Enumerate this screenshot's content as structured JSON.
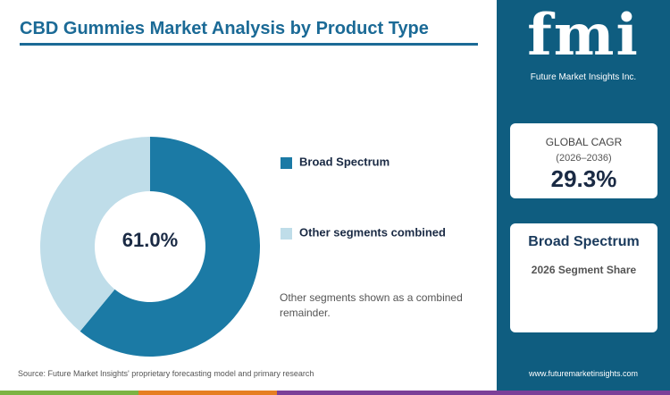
{
  "chart_data": {
    "type": "donut",
    "title": "CBD Gummies Market Analysis by Product Type",
    "categories": [
      "Broad Spectrum",
      "Other segments combined"
    ],
    "values": [
      61.0,
      39.0
    ],
    "value_labels": [
      "61.0%",
      null
    ],
    "colors": [
      "#1b7aa5",
      "#bfdde9"
    ],
    "note": "Other segments shown as a combined remainder.",
    "source": "Source: Future Market Insights' proprietary forecasting model and primary research"
  },
  "sidebar": {
    "logo": "fmi",
    "logo_caption": "Future Market Insights Inc.",
    "cagr_label": "GLOBAL CAGR",
    "cagr_period": "(2026–2036)",
    "cagr_value": "29.3%",
    "segment_title": "Broad Spectrum",
    "segment_caption": "2026 Segment Share",
    "website": "www.futuremarketinsights.com"
  }
}
